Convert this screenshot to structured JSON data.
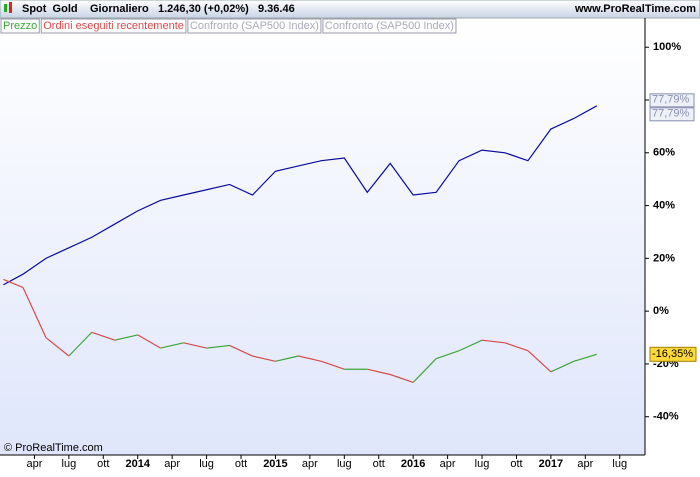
{
  "header": {
    "instrument": "Spot  Gold",
    "period": "Giornaliero",
    "price": "1.246,30 (+0,02%)",
    "time": "9.36.46",
    "site": "www.ProRealTime.com"
  },
  "footer": "© ProRealTime.com",
  "chart_data": {
    "type": "line",
    "x": [
      0.3,
      2,
      4,
      6,
      8,
      10,
      12,
      14,
      16,
      18,
      20,
      22,
      24,
      26,
      28,
      30,
      32,
      34,
      36,
      38,
      40,
      42,
      44,
      46,
      48,
      50,
      52
    ],
    "xlim": [
      0,
      56.2
    ],
    "xticks": [
      {
        "value": 3,
        "label": "apr"
      },
      {
        "value": 6,
        "label": "lug"
      },
      {
        "value": 9,
        "label": "ott"
      },
      {
        "value": 12,
        "label": "2014"
      },
      {
        "value": 15,
        "label": "apr"
      },
      {
        "value": 18,
        "label": "lug"
      },
      {
        "value": 21,
        "label": "ott"
      },
      {
        "value": 24,
        "label": "2015"
      },
      {
        "value": 27,
        "label": "apr"
      },
      {
        "value": 30,
        "label": "lug"
      },
      {
        "value": 33,
        "label": "ott"
      },
      {
        "value": 36,
        "label": "2016"
      },
      {
        "value": 39,
        "label": "apr"
      },
      {
        "value": 42,
        "label": "lug"
      },
      {
        "value": 45,
        "label": "ott"
      },
      {
        "value": 48,
        "label": "2017"
      },
      {
        "value": 51,
        "label": "apr"
      },
      {
        "value": 54,
        "label": "lug"
      }
    ],
    "ylim": [
      -54.5,
      105
    ],
    "yticks": [
      {
        "value": -40,
        "label": "-40%"
      },
      {
        "value": -20,
        "label": "-20%"
      },
      {
        "value": 0,
        "label": "0%"
      },
      {
        "value": 20,
        "label": "20%"
      },
      {
        "value": 40,
        "label": "40%"
      },
      {
        "value": 60,
        "label": "60%"
      },
      {
        "value": 80,
        "label": "80%"
      },
      {
        "value": 100,
        "label": "100%"
      }
    ],
    "series": [
      {
        "name": "Confronto (SAP500 Index)",
        "color": "#0a0aa0",
        "values": [
          10,
          14,
          20,
          24,
          28,
          33,
          38,
          42,
          44,
          46,
          48,
          44,
          53,
          55,
          57,
          58,
          45,
          56,
          44,
          45,
          57,
          61,
          60,
          57,
          69,
          73,
          77.79
        ],
        "last_label": "77,79%"
      },
      {
        "name": "Prezzo",
        "color": "#3aa63a",
        "down_name": "Ordini eseguiti recentemente",
        "down_color": "#d84a4a",
        "values": [
          12,
          9,
          -10,
          -17,
          -8,
          -11,
          -9,
          -14,
          -12,
          -14,
          -13,
          -17,
          -19,
          -17,
          -19,
          -22,
          -22,
          -24,
          -27,
          -18,
          -15,
          -11,
          -12,
          -15,
          -23,
          -19,
          -16.35
        ],
        "last_label": "-16,35%"
      }
    ],
    "extra_legend": [
      "Confronto (SAP500 Index)"
    ]
  }
}
